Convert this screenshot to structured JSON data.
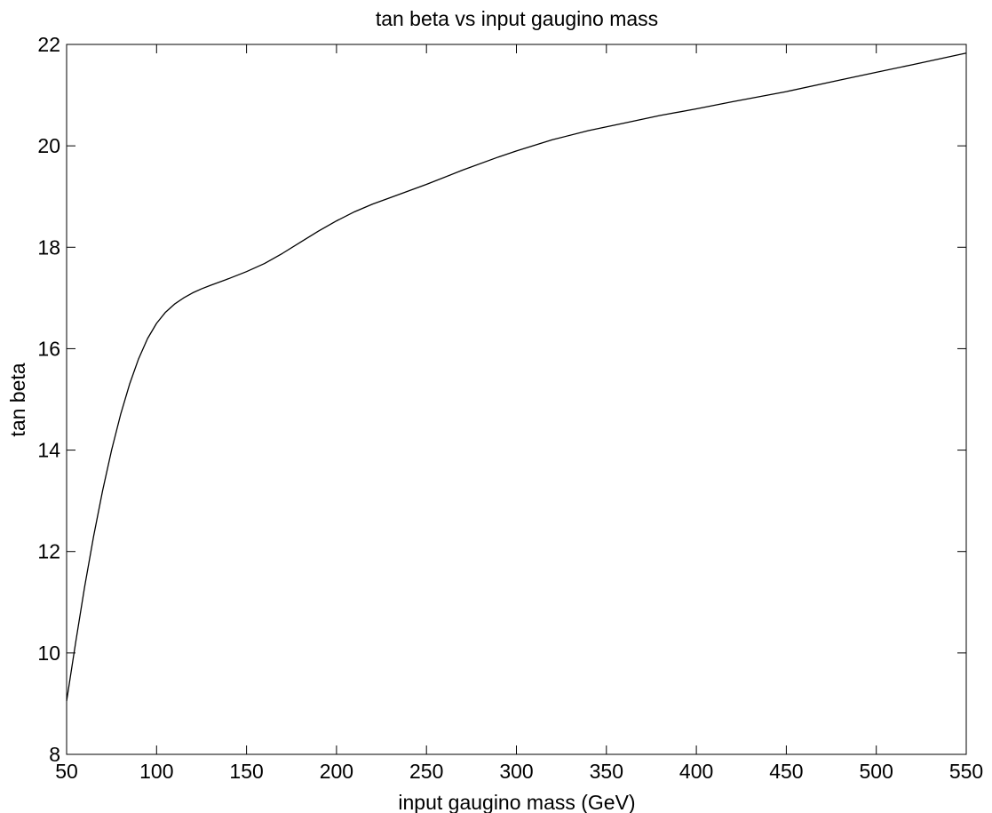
{
  "chart_data": {
    "type": "line",
    "title": "tan beta vs input gaugino mass",
    "xlabel": "input gaugino mass (GeV)",
    "ylabel": "tan beta",
    "xlim": [
      50,
      550
    ],
    "ylim": [
      8,
      22
    ],
    "xticks": [
      50,
      100,
      150,
      200,
      250,
      300,
      350,
      400,
      450,
      500,
      550
    ],
    "yticks": [
      8,
      10,
      12,
      14,
      16,
      18,
      20,
      22
    ],
    "grid": false,
    "legend": "none",
    "series": [
      {
        "color": "#000000",
        "x": [
          50,
          55,
          60,
          65,
          70,
          75,
          80,
          85,
          90,
          95,
          100,
          105,
          110,
          115,
          120,
          125,
          130,
          140,
          150,
          160,
          170,
          180,
          190,
          200,
          210,
          220,
          230,
          250,
          270,
          290,
          300,
          320,
          340,
          360,
          380,
          400,
          420,
          450,
          480,
          500,
          520,
          550
        ],
        "y": [
          9.05,
          10.2,
          11.3,
          12.3,
          13.2,
          14.0,
          14.7,
          15.3,
          15.8,
          16.2,
          16.5,
          16.72,
          16.88,
          17.0,
          17.1,
          17.18,
          17.25,
          17.38,
          17.52,
          17.68,
          17.88,
          18.1,
          18.32,
          18.52,
          18.7,
          18.85,
          18.98,
          19.24,
          19.52,
          19.78,
          19.9,
          20.12,
          20.3,
          20.45,
          20.6,
          20.73,
          20.87,
          21.07,
          21.3,
          21.45,
          21.6,
          21.83
        ]
      }
    ]
  }
}
